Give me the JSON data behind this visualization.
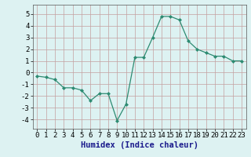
{
  "x": [
    0,
    1,
    2,
    3,
    4,
    5,
    6,
    7,
    8,
    9,
    10,
    11,
    12,
    13,
    14,
    15,
    16,
    17,
    18,
    19,
    20,
    21,
    22,
    23
  ],
  "y": [
    -0.3,
    -0.4,
    -0.6,
    -1.3,
    -1.3,
    -1.5,
    -2.4,
    -1.8,
    -1.8,
    -4.1,
    -2.7,
    1.3,
    1.3,
    3.0,
    4.8,
    4.8,
    4.5,
    2.7,
    2.0,
    1.7,
    1.4,
    1.4,
    1.0,
    1.0
  ],
  "line_color": "#2d8b72",
  "marker": "D",
  "marker_size": 2.0,
  "bg_color": "#ddf2f2",
  "grid_color": "#b0c8c8",
  "grid_color_major": "#c4a0a0",
  "xlabel": "Humidex (Indice chaleur)",
  "xlim": [
    -0.5,
    23.5
  ],
  "ylim": [
    -4.8,
    5.8
  ],
  "yticks": [
    -4,
    -3,
    -2,
    -1,
    0,
    1,
    2,
    3,
    4,
    5
  ],
  "xticks": [
    0,
    1,
    2,
    3,
    4,
    5,
    6,
    7,
    8,
    9,
    10,
    11,
    12,
    13,
    14,
    15,
    16,
    17,
    18,
    19,
    20,
    21,
    22,
    23
  ],
  "tick_fontsize": 6.5,
  "xlabel_fontsize": 7.5
}
